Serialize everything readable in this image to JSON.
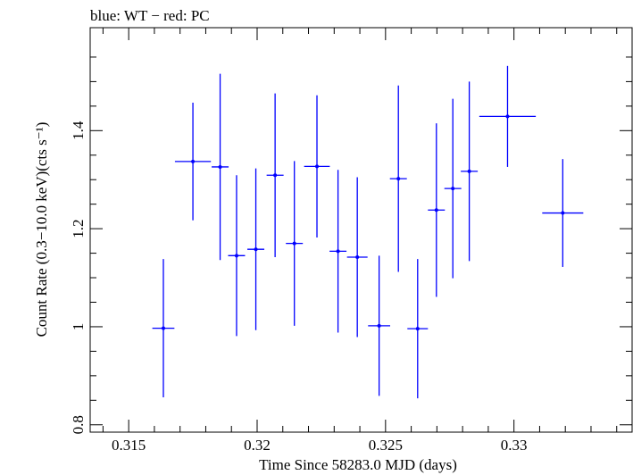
{
  "chart_data": {
    "type": "scatter",
    "title": "blue: WT − red: PC",
    "xlabel": "Time Since 58283.0 MJD (days)",
    "ylabel": "Count Rate (0.3−10.0 keV)(cts s⁻¹)",
    "xlim": [
      0.3135,
      0.3346
    ],
    "ylim": [
      0.785,
      1.61
    ],
    "x_ticks": [
      0.315,
      0.32,
      0.325,
      0.33
    ],
    "x_tick_labels": [
      "0.315",
      "0.32",
      "0.325",
      "0.33"
    ],
    "y_ticks": [
      0.8,
      1.0,
      1.2,
      1.4
    ],
    "y_tick_labels": [
      "0.8",
      "1",
      "1.2",
      "1.4"
    ],
    "grid": false,
    "series": [
      {
        "color": "#0000ff",
        "points": [
          {
            "x": 0.31635,
            "xerr": 0.00043,
            "y": 0.997,
            "yerr": 0.141
          },
          {
            "x": 0.3175,
            "xerr": 0.0007,
            "y": 1.337,
            "yerr": 0.12
          },
          {
            "x": 0.31856,
            "xerr": 0.00033,
            "y": 1.326,
            "yerr": 0.19
          },
          {
            "x": 0.3192,
            "xerr": 0.00033,
            "y": 1.145,
            "yerr": 0.164
          },
          {
            "x": 0.31995,
            "xerr": 0.00033,
            "y": 1.158,
            "yerr": 0.165
          },
          {
            "x": 0.3207,
            "xerr": 0.00033,
            "y": 1.309,
            "yerr": 0.167
          },
          {
            "x": 0.32145,
            "xerr": 0.00033,
            "y": 1.17,
            "yerr": 0.168
          },
          {
            "x": 0.32233,
            "xerr": 0.0005,
            "y": 1.327,
            "yerr": 0.145
          },
          {
            "x": 0.32315,
            "xerr": 0.00033,
            "y": 1.154,
            "yerr": 0.166
          },
          {
            "x": 0.3239,
            "xerr": 0.0004,
            "y": 1.142,
            "yerr": 0.163
          },
          {
            "x": 0.32475,
            "xerr": 0.00043,
            "y": 1.002,
            "yerr": 0.143
          },
          {
            "x": 0.3255,
            "xerr": 0.00033,
            "y": 1.302,
            "yerr": 0.19
          },
          {
            "x": 0.32625,
            "xerr": 0.0004,
            "y": 0.996,
            "yerr": 0.142
          },
          {
            "x": 0.32698,
            "xerr": 0.00033,
            "y": 1.238,
            "yerr": 0.177
          },
          {
            "x": 0.32762,
            "xerr": 0.00033,
            "y": 1.282,
            "yerr": 0.183
          },
          {
            "x": 0.32826,
            "xerr": 0.00033,
            "y": 1.317,
            "yerr": 0.183
          },
          {
            "x": 0.32975,
            "xerr": 0.0011,
            "y": 1.429,
            "yerr": 0.103
          },
          {
            "x": 0.3319,
            "xerr": 0.0008,
            "y": 1.232,
            "yerr": 0.11
          }
        ]
      }
    ]
  }
}
